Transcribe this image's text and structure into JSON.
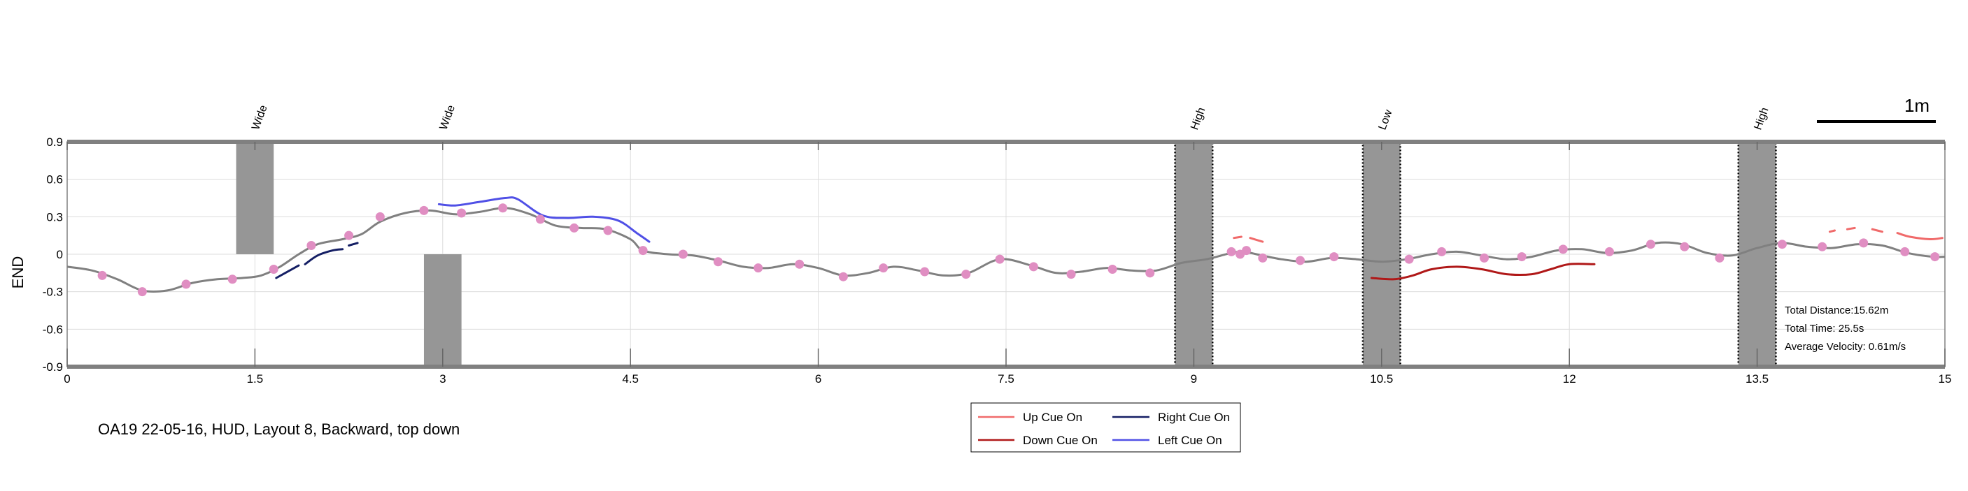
{
  "caption": "OA19 22-05-16, HUD, Layout 8, Backward, top down",
  "scale_bar_label": "1m",
  "info": {
    "distance": "Total Distance:15.62m",
    "time": "Total Time: 25.5s",
    "velocity": "Average Velocity: 0.61m/s"
  },
  "chart_data": {
    "type": "line",
    "title": "",
    "xlabel": "",
    "ylabel": "END",
    "xlim": [
      0,
      15
    ],
    "ylim": [
      -0.9,
      0.9
    ],
    "grid": true,
    "xticks": [
      0,
      1.5,
      3,
      4.5,
      6,
      7.5,
      9,
      10.5,
      12,
      13.5,
      15
    ],
    "xtick_labels": [
      "0",
      "1.5",
      "3",
      "4.5",
      "6",
      "7.5",
      "9",
      "10.5",
      "12",
      "13.5",
      "15"
    ],
    "yticks": [
      0.9,
      0.6,
      0.3,
      0,
      -0.3,
      -0.6,
      -0.9
    ],
    "ytick_labels": [
      "0.9",
      "0.6",
      "0.3",
      "0",
      "-0.3",
      "-0.6",
      "-0.9"
    ],
    "colors": {
      "path": "#808080",
      "markers": "#e08ec2",
      "obstacle": "#969696",
      "up": "#f06a6a",
      "down": "#b01818",
      "right": "#141e64",
      "left": "#5050e6"
    },
    "obstacles": [
      {
        "label": "Wide",
        "x": [
          1.35,
          1.65
        ],
        "y": [
          0,
          0.9
        ],
        "dotted": false,
        "label_x": 1.5
      },
      {
        "label": "Wide",
        "x": [
          2.85,
          3.15
        ],
        "y": [
          -0.9,
          0
        ],
        "dotted": false,
        "label_x": 3.0
      },
      {
        "label": "High",
        "x": [
          8.85,
          9.15
        ],
        "y": [
          -0.9,
          0.9
        ],
        "dotted": true,
        "label_x": 9.0
      },
      {
        "label": "Low",
        "x": [
          10.35,
          10.65
        ],
        "y": [
          -0.9,
          0.9
        ],
        "dotted": true,
        "label_x": 10.5
      },
      {
        "label": "High",
        "x": [
          13.35,
          13.65
        ],
        "y": [
          -0.9,
          0.9
        ],
        "dotted": true,
        "label_x": 13.5
      }
    ],
    "path": [
      [
        0.0,
        -0.1
      ],
      [
        0.2,
        -0.13
      ],
      [
        0.4,
        -0.2
      ],
      [
        0.6,
        -0.29
      ],
      [
        0.8,
        -0.29
      ],
      [
        1.0,
        -0.23
      ],
      [
        1.2,
        -0.2
      ],
      [
        1.4,
        -0.19
      ],
      [
        1.55,
        -0.17
      ],
      [
        1.7,
        -0.1
      ],
      [
        1.85,
        0.0
      ],
      [
        2.0,
        0.08
      ],
      [
        2.2,
        0.12
      ],
      [
        2.35,
        0.16
      ],
      [
        2.5,
        0.26
      ],
      [
        2.7,
        0.33
      ],
      [
        2.9,
        0.35
      ],
      [
        3.1,
        0.32
      ],
      [
        3.3,
        0.34
      ],
      [
        3.5,
        0.37
      ],
      [
        3.7,
        0.32
      ],
      [
        3.9,
        0.23
      ],
      [
        4.1,
        0.21
      ],
      [
        4.3,
        0.2
      ],
      [
        4.5,
        0.12
      ],
      [
        4.6,
        0.03
      ],
      [
        4.8,
        0.0
      ],
      [
        5.0,
        -0.01
      ],
      [
        5.2,
        -0.05
      ],
      [
        5.4,
        -0.1
      ],
      [
        5.6,
        -0.11
      ],
      [
        5.8,
        -0.08
      ],
      [
        6.0,
        -0.11
      ],
      [
        6.2,
        -0.17
      ],
      [
        6.4,
        -0.15
      ],
      [
        6.6,
        -0.1
      ],
      [
        6.8,
        -0.13
      ],
      [
        7.0,
        -0.17
      ],
      [
        7.2,
        -0.15
      ],
      [
        7.45,
        -0.04
      ],
      [
        7.7,
        -0.09
      ],
      [
        7.9,
        -0.15
      ],
      [
        8.1,
        -0.14
      ],
      [
        8.3,
        -0.11
      ],
      [
        8.5,
        -0.13
      ],
      [
        8.7,
        -0.13
      ],
      [
        8.9,
        -0.07
      ],
      [
        9.1,
        -0.04
      ],
      [
        9.3,
        0.01
      ],
      [
        9.4,
        0.02
      ],
      [
        9.5,
        0.0
      ],
      [
        9.7,
        -0.04
      ],
      [
        9.9,
        -0.06
      ],
      [
        10.1,
        -0.03
      ],
      [
        10.3,
        -0.04
      ],
      [
        10.5,
        -0.06
      ],
      [
        10.7,
        -0.04
      ],
      [
        10.9,
        0.0
      ],
      [
        11.1,
        0.02
      ],
      [
        11.3,
        -0.01
      ],
      [
        11.5,
        -0.04
      ],
      [
        11.7,
        -0.02
      ],
      [
        11.9,
        0.03
      ],
      [
        12.1,
        0.04
      ],
      [
        12.3,
        0.01
      ],
      [
        12.5,
        0.03
      ],
      [
        12.7,
        0.09
      ],
      [
        12.9,
        0.08
      ],
      [
        13.1,
        0.01
      ],
      [
        13.3,
        -0.01
      ],
      [
        13.5,
        0.05
      ],
      [
        13.7,
        0.09
      ],
      [
        13.9,
        0.06
      ],
      [
        14.1,
        0.05
      ],
      [
        14.3,
        0.08
      ],
      [
        14.5,
        0.07
      ],
      [
        14.7,
        0.01
      ],
      [
        14.9,
        -0.02
      ],
      [
        15.0,
        -0.02
      ]
    ],
    "markers": [
      [
        0.28,
        -0.17
      ],
      [
        0.6,
        -0.3
      ],
      [
        0.95,
        -0.24
      ],
      [
        1.32,
        -0.2
      ],
      [
        1.65,
        -0.12
      ],
      [
        1.95,
        0.07
      ],
      [
        2.25,
        0.15
      ],
      [
        2.5,
        0.3
      ],
      [
        2.85,
        0.35
      ],
      [
        3.15,
        0.33
      ],
      [
        3.48,
        0.37
      ],
      [
        3.78,
        0.28
      ],
      [
        4.05,
        0.21
      ],
      [
        4.32,
        0.19
      ],
      [
        4.6,
        0.03
      ],
      [
        4.92,
        0.0
      ],
      [
        5.2,
        -0.06
      ],
      [
        5.52,
        -0.11
      ],
      [
        5.85,
        -0.08
      ],
      [
        6.2,
        -0.18
      ],
      [
        6.52,
        -0.11
      ],
      [
        6.85,
        -0.14
      ],
      [
        7.18,
        -0.16
      ],
      [
        7.45,
        -0.04
      ],
      [
        7.72,
        -0.1
      ],
      [
        8.02,
        -0.16
      ],
      [
        8.35,
        -0.12
      ],
      [
        8.65,
        -0.15
      ],
      [
        9.3,
        0.02
      ],
      [
        9.37,
        0.0
      ],
      [
        9.42,
        0.03
      ],
      [
        9.55,
        -0.03
      ],
      [
        9.85,
        -0.05
      ],
      [
        10.12,
        -0.02
      ],
      [
        10.72,
        -0.04
      ],
      [
        10.98,
        0.02
      ],
      [
        11.32,
        -0.03
      ],
      [
        11.62,
        -0.02
      ],
      [
        11.95,
        0.04
      ],
      [
        12.32,
        0.02
      ],
      [
        12.65,
        0.08
      ],
      [
        12.92,
        0.06
      ],
      [
        13.2,
        -0.03
      ],
      [
        13.7,
        0.08
      ],
      [
        14.02,
        0.06
      ],
      [
        14.35,
        0.09
      ],
      [
        14.68,
        0.02
      ],
      [
        14.92,
        -0.02
      ]
    ],
    "series": [
      {
        "name": "Up Cue On",
        "key": "up",
        "segments": [
          [
            [
              9.32,
              0.13
            ],
            [
              9.38,
              0.14
            ]
          ],
          [
            [
              9.45,
              0.13
            ],
            [
              9.55,
              0.1
            ]
          ],
          [
            [
              14.08,
              0.18
            ],
            [
              14.12,
              0.19
            ]
          ],
          [
            [
              14.22,
              0.2
            ],
            [
              14.28,
              0.21
            ]
          ],
          [
            [
              14.42,
              0.2
            ],
            [
              14.5,
              0.18
            ]
          ],
          [
            [
              14.62,
              0.17
            ],
            [
              14.72,
              0.14
            ],
            [
              14.88,
              0.12
            ],
            [
              14.98,
              0.13
            ]
          ]
        ]
      },
      {
        "name": "Down Cue On",
        "key": "down",
        "segments": [
          [
            [
              10.42,
              -0.19
            ],
            [
              10.6,
              -0.2
            ],
            [
              10.75,
              -0.17
            ],
            [
              10.9,
              -0.12
            ],
            [
              11.1,
              -0.1
            ],
            [
              11.3,
              -0.12
            ],
            [
              11.5,
              -0.16
            ],
            [
              11.7,
              -0.16
            ],
            [
              11.85,
              -0.12
            ],
            [
              12.0,
              -0.08
            ],
            [
              12.2,
              -0.08
            ]
          ]
        ]
      },
      {
        "name": "Right Cue On",
        "key": "right",
        "segments": [
          [
            [
              1.67,
              -0.19
            ],
            [
              1.85,
              -0.09
            ]
          ],
          [
            [
              1.9,
              -0.08
            ],
            [
              2.0,
              -0.01
            ],
            [
              2.12,
              0.03
            ],
            [
              2.2,
              0.04
            ]
          ],
          [
            [
              2.25,
              0.07
            ],
            [
              2.32,
              0.09
            ]
          ]
        ]
      },
      {
        "name": "Left Cue On",
        "key": "left",
        "segments": [
          [
            [
              2.97,
              0.4
            ],
            [
              3.1,
              0.39
            ],
            [
              3.3,
              0.42
            ],
            [
              3.5,
              0.45
            ],
            [
              3.6,
              0.44
            ],
            [
              3.8,
              0.31
            ],
            [
              4.0,
              0.29
            ],
            [
              4.2,
              0.3
            ],
            [
              4.4,
              0.27
            ],
            [
              4.55,
              0.17
            ],
            [
              4.65,
              0.1
            ]
          ]
        ]
      }
    ],
    "legend": {
      "placement": "bottom-center",
      "columns": 2
    }
  }
}
